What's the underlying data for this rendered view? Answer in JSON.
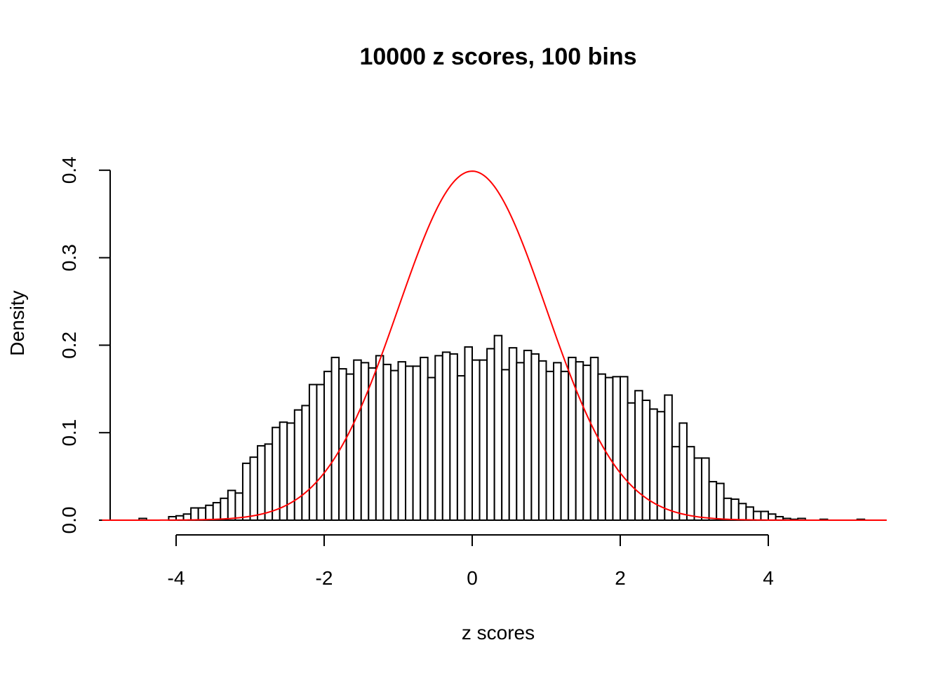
{
  "chart_data": {
    "type": "bar",
    "title": "10000 z scores, 100 bins",
    "xlabel": "z scores",
    "ylabel": "Density",
    "xlim": [
      -5,
      5.6
    ],
    "ylim": [
      0,
      0.4
    ],
    "x_ticks": [
      -4,
      -2,
      0,
      2,
      4
    ],
    "x_tick_labels": [
      "-4",
      "-2",
      "0",
      "2",
      "4"
    ],
    "y_ticks": [
      0,
      0.1,
      0.2,
      0.3,
      0.4
    ],
    "y_tick_labels": [
      "0.0",
      "0.1",
      "0.2",
      "0.3",
      "0.4"
    ],
    "bins": {
      "start": -4.5,
      "width": 0.1,
      "density": [
        0.002,
        0,
        0,
        0,
        0.004,
        0.005,
        0.007,
        0.014,
        0.014,
        0.017,
        0.02,
        0.025,
        0.034,
        0.031,
        0.065,
        0.072,
        0.085,
        0.087,
        0.106,
        0.112,
        0.111,
        0.126,
        0.131,
        0.155,
        0.155,
        0.17,
        0.186,
        0.173,
        0.167,
        0.183,
        0.18,
        0.174,
        0.188,
        0.178,
        0.171,
        0.181,
        0.176,
        0.176,
        0.186,
        0.163,
        0.188,
        0.192,
        0.19,
        0.165,
        0.198,
        0.183,
        0.183,
        0.196,
        0.211,
        0.172,
        0.197,
        0.18,
        0.194,
        0.19,
        0.182,
        0.17,
        0.18,
        0.17,
        0.186,
        0.181,
        0.177,
        0.186,
        0.167,
        0.163,
        0.164,
        0.164,
        0.134,
        0.148,
        0.137,
        0.127,
        0.124,
        0.143,
        0.084,
        0.111,
        0.084,
        0.071,
        0.071,
        0.044,
        0.042,
        0.025,
        0.024,
        0.019,
        0.015,
        0.01,
        0.01,
        0.007,
        0.004,
        0.002,
        0.001,
        0.002,
        0,
        0,
        0.001,
        0,
        0,
        0,
        0,
        0.001
      ]
    },
    "curve": {
      "name": "normal density",
      "mean": 0,
      "sd": 1,
      "color": "#ff0000"
    },
    "colors": {
      "bar_fill": "#ffffff",
      "bar_stroke": "#000000",
      "curve": "#ff0000"
    }
  }
}
